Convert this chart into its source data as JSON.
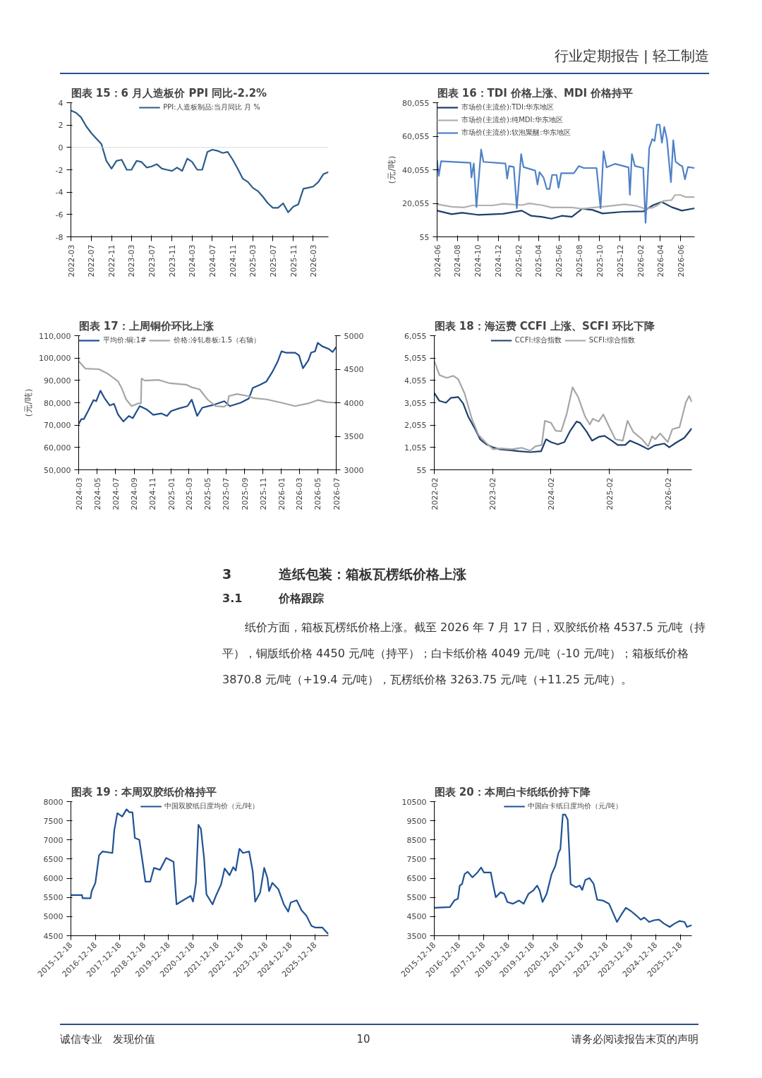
{
  "chart_data": [
    {
      "type": "other",
      "annotations": [
        "行业定期报告 | 轻工制造"
      ]
    },
    {
      "type": "line",
      "title": "图表 15：6 月人造板价 PPI 同比-2.2%",
      "legend": "top",
      "x": [
        "2022-03",
        "2022-04",
        "2022-05",
        "2022-06",
        "2022-07",
        "2022-08",
        "2022-09",
        "2022-10",
        "2022-11",
        "2022-12",
        "2023-01",
        "2023-02",
        "2023-03",
        "2023-04",
        "2023-05",
        "2023-06",
        "2023-07",
        "2023-08",
        "2023-09",
        "2023-10",
        "2023-11",
        "2023-12",
        "2024-01",
        "2024-02",
        "2024-03",
        "2024-04",
        "2024-05",
        "2024-06",
        "2024-07",
        "2024-08",
        "2024-09",
        "2024-10",
        "2024-11",
        "2024-12",
        "2025-01",
        "2025-02",
        "2025-03",
        "2025-04",
        "2025-05",
        "2025-06",
        "2025-07",
        "2025-08",
        "2025-09",
        "2025-10",
        "2025-11",
        "2025-12",
        "2026-01",
        "2026-02",
        "2026-03",
        "2026-04",
        "2026-05",
        "2026-06"
      ],
      "series": [
        {
          "name": "PPI:人造板制品:当月同比 月 %",
          "color": "#2b5c8a",
          "values": [
            3.3,
            3.1,
            2.7,
            1.9,
            1.3,
            0.8,
            0.3,
            -1.2,
            -1.9,
            -1.2,
            -1.1,
            -2.0,
            -2.0,
            -1.2,
            -1.3,
            -1.8,
            -1.7,
            -1.5,
            -1.9,
            -2.0,
            -2.1,
            -1.8,
            -2.1,
            -1.0,
            -1.3,
            -2.0,
            -2.0,
            -0.4,
            -0.2,
            -0.3,
            -0.5,
            -0.4,
            -1.1,
            -1.9,
            -2.8,
            -3.1,
            -3.6,
            -3.9,
            -4.4,
            -5.0,
            -5.4,
            -5.4,
            -5.0,
            -5.8,
            -5.3,
            -5.1,
            -3.7,
            -3.6,
            -3.5,
            -3.1,
            -2.4,
            -2.2
          ]
        }
      ],
      "xlim": [
        "2022-03",
        "2026-06"
      ],
      "xticks": [
        "2022-03",
        "2022-07",
        "2022-11",
        "2023-03",
        "2023-07",
        "2023-11",
        "2024-03",
        "2024-07",
        "2024-11",
        "2025-03",
        "2025-07",
        "2025-11",
        "2026-03"
      ],
      "ylim": [
        -8,
        4
      ],
      "yticks": [
        -8,
        -6,
        -4,
        -2,
        0,
        2,
        4
      ],
      "ref_lines": [
        {
          "axis": "y",
          "value": 0,
          "color": "#d9d9d9"
        }
      ]
    },
    {
      "type": "line",
      "title": "图表 16：TDI 价格上涨、MDI 价格持平",
      "ylabel": "（元/吨）",
      "legend": "top left",
      "series": [
        {
          "name": "市场价(主流价):TDI:华东地区",
          "color": "#1f3f6e",
          "x": [
            "2024-06-01",
            "2024-07-15",
            "2024-08-15",
            "2024-10-01",
            "2024-12-15",
            "2025-02-10",
            "2025-03-10",
            "2025-04-10",
            "2025-05-10",
            "2025-06-10",
            "2025-07-10",
            "2025-08-10",
            "2025-09-10",
            "2025-10-10",
            "2025-12-10",
            "2026-02-10",
            "2026-03-10",
            "2026-04-05",
            "2026-05-05",
            "2026-06-05",
            "2026-07-13"
          ],
          "values": [
            15700,
            13600,
            14400,
            13200,
            13800,
            15700,
            12600,
            12000,
            10900,
            12600,
            12000,
            16800,
            16100,
            14000,
            15000,
            15300,
            18900,
            20900,
            17800,
            15700,
            17100
          ]
        },
        {
          "name": "市场价(主流价):纯MDI:华东地区",
          "color": "#b0b0b0",
          "x": [
            "2024-06-01",
            "2024-07-15",
            "2024-08-20",
            "2024-09-15",
            "2024-11-15",
            "2024-12-15",
            "2025-02-10",
            "2025-03-05",
            "2025-04-10",
            "2025-05-10",
            "2025-07-10",
            "2025-08-10",
            "2025-09-15",
            "2025-10-20",
            "2025-12-15",
            "2026-01-20",
            "2026-02-15",
            "2026-03-10",
            "2026-03-25",
            "2026-04-10",
            "2026-05-05",
            "2026-05-15",
            "2026-06-01",
            "2026-06-15",
            "2026-07-13"
          ],
          "values": [
            19500,
            18000,
            17600,
            18800,
            18800,
            19800,
            19000,
            20000,
            19000,
            17600,
            17600,
            16800,
            17600,
            18200,
            19500,
            18500,
            16800,
            17500,
            19000,
            21500,
            22000,
            25000,
            25000,
            23800,
            23800
          ]
        },
        {
          "name": "市场价(主流价):软泡聚醚:华东地区",
          "color": "#4f81c7",
          "x": [
            "2024-06-01",
            "2024-06-06",
            "2024-06-13",
            "2024-09-09",
            "2024-09-12",
            "2024-09-19",
            "2024-09-27",
            "2024-10-11",
            "2024-10-18",
            "2024-12-23",
            "2024-12-28",
            "2025-01-03",
            "2025-01-17",
            "2025-01-26",
            "2025-02-08",
            "2025-02-15",
            "2025-03-22",
            "2025-03-29",
            "2025-04-04",
            "2025-04-16",
            "2025-04-26",
            "2025-05-04",
            "2025-05-12",
            "2025-05-25",
            "2025-05-31",
            "2025-06-08",
            "2025-07-16",
            "2025-07-31",
            "2025-08-15",
            "2025-09-22",
            "2025-10-04",
            "2025-10-13",
            "2025-10-22",
            "2025-11-17",
            "2025-12-27",
            "2025-12-31",
            "2026-01-06",
            "2026-01-15",
            "2026-02-09",
            "2026-02-16",
            "2026-02-27",
            "2026-03-08",
            "2026-03-15",
            "2026-03-22",
            "2026-03-30",
            "2026-04-06",
            "2026-04-13",
            "2026-04-21",
            "2026-05-03",
            "2026-05-10",
            "2026-05-17",
            "2026-05-31",
            "2026-06-06",
            "2026-06-14",
            "2026-06-23",
            "2026-07-13"
          ],
          "values": [
            45900,
            36400,
            45200,
            44200,
            35500,
            43800,
            17800,
            52100,
            44800,
            43800,
            34800,
            42300,
            41700,
            17100,
            49400,
            41700,
            39600,
            31300,
            38600,
            35500,
            28600,
            28600,
            37000,
            37000,
            29300,
            38000,
            38000,
            42300,
            41100,
            41100,
            17100,
            51100,
            41500,
            43600,
            41500,
            25100,
            49400,
            42300,
            41100,
            8400,
            53100,
            58300,
            57300,
            67000,
            67000,
            56200,
            65600,
            58300,
            32700,
            57700,
            44800,
            42700,
            42300,
            34400,
            41700,
            41100
          ]
        }
      ],
      "xlim": [
        "2024-06-01",
        "2026-07-13"
      ],
      "xticks": [
        "2024-06",
        "2024-08",
        "2024-10",
        "2024-12",
        "2025-02",
        "2025-04",
        "2025-06",
        "2025-08",
        "2025-10",
        "2025-12",
        "2026-02",
        "2026-04",
        "2026-06"
      ],
      "ylim": [
        55,
        80055
      ],
      "yticks": [
        55,
        {
          "value": 20055,
          "label": "20,055"
        },
        {
          "value": 40055,
          "label": "40,055"
        },
        {
          "value": 60055,
          "label": "60,055"
        },
        {
          "value": 80055,
          "label": "80,055"
        }
      ]
    },
    {
      "type": "line",
      "title": "图表 17：上周铜价环比上涨",
      "ylabel": "（元/吨）",
      "legend": "top left",
      "series": [
        {
          "name": "平均价:铜:1#",
          "color": "#1f4e8c",
          "x": [
            "2024-03-01",
            "2024-03-10",
            "2024-03-18",
            "2024-04-01",
            "2024-04-19",
            "2024-04-28",
            "2024-05-12",
            "2024-05-25",
            "2024-06-12",
            "2024-06-26",
            "2024-07-09",
            "2024-07-27",
            "2024-08-14",
            "2024-08-27",
            "2024-09-19",
            "2024-10-11",
            "2024-11-03",
            "2024-11-30",
            "2024-12-18",
            "2025-01-01",
            "2025-01-28",
            "2025-02-24",
            "2025-03-10",
            "2025-03-28",
            "2025-04-14",
            "2025-05-20",
            "2025-06-26",
            "2025-07-14",
            "2025-08-19",
            "2025-09-15",
            "2025-09-28",
            "2025-10-21",
            "2025-11-12",
            "2025-12-01",
            "2025-12-19",
            "2026-01-01",
            "2026-01-15",
            "2026-02-15",
            "2026-02-28",
            "2026-03-13",
            "2026-03-31",
            "2026-04-09",
            "2026-04-22",
            "2026-05-01",
            "2026-05-15",
            "2026-06-06",
            "2026-06-19",
            "2026-07-01"
          ],
          "values": [
            70500,
            72700,
            72700,
            76300,
            81200,
            80700,
            85400,
            82200,
            78800,
            79500,
            74800,
            71600,
            74100,
            73100,
            78500,
            77100,
            74600,
            75200,
            74100,
            76300,
            77500,
            78500,
            81400,
            74100,
            77800,
            79000,
            80700,
            78500,
            80000,
            81900,
            86600,
            88000,
            89500,
            93600,
            98300,
            103000,
            102400,
            102400,
            101200,
            95400,
            99000,
            102400,
            103000,
            106800,
            105300,
            104100,
            102700,
            104900
          ]
        },
        {
          "name": "价格:冷轧卷板:1.5（右轴）",
          "color": "#a6a6a6",
          "axis": "y2",
          "x": [
            "2024-03-01",
            "2024-03-23",
            "2024-05-07",
            "2024-06-03",
            "2024-07-09",
            "2024-07-22",
            "2024-08-05",
            "2024-08-23",
            "2024-09-14",
            "2024-09-23",
            "2024-09-25",
            "2024-10-06",
            "2024-11-21",
            "2024-12-28",
            "2025-02-20",
            "2025-03-10",
            "2025-04-05",
            "2025-05-01",
            "2025-05-28",
            "2025-06-24",
            "2025-07-06",
            "2025-07-11",
            "2025-08-07",
            "2025-09-12",
            "2025-09-30",
            "2025-11-13",
            "2026-01-01",
            "2026-02-15",
            "2026-03-31",
            "2026-05-01",
            "2026-06-01",
            "2026-07-01"
          ],
          "values": [
            4620,
            4510,
            4500,
            4440,
            4320,
            4210,
            4050,
            3950,
            3990,
            3990,
            4360,
            4330,
            4340,
            4290,
            4270,
            4230,
            4200,
            4050,
            3950,
            3940,
            3970,
            4100,
            4130,
            4100,
            4070,
            4050,
            4000,
            3950,
            3990,
            4040,
            4010,
            4000
          ]
        }
      ],
      "xlim": [
        "2024-03-01",
        "2026-07-01"
      ],
      "xticks": [
        "2024-03",
        "2024-05",
        "2024-07",
        "2024-09",
        "2024-11",
        "2025-01",
        "2025-03",
        "2025-05",
        "2025-07",
        "2025-09",
        "2025-11",
        "2026-01",
        "2026-03",
        "2026-05",
        "2026-07"
      ],
      "ylim": [
        50000,
        110000
      ],
      "yticks": [
        {
          "value": 50000,
          "label": "50,000"
        },
        {
          "value": 60000,
          "label": "60,000"
        },
        {
          "value": 70000,
          "label": "70,000"
        },
        {
          "value": 80000,
          "label": "80,000"
        },
        {
          "value": 90000,
          "label": "90,000"
        },
        {
          "value": 100000,
          "label": "100,000"
        },
        {
          "value": 110000,
          "label": "110,000"
        }
      ],
      "y2lim": [
        3000,
        5000
      ],
      "y2ticks": [
        3000,
        3500,
        4000,
        4500,
        5000
      ]
    },
    {
      "type": "line",
      "title": "图表 18：海运费 CCFI 上涨、SCFI 环比下降",
      "legend": "top",
      "series": [
        {
          "name": "CCFI:综合指数",
          "color": "#1f3f6e",
          "x": [
            "2022-02-01",
            "2022-03-05",
            "2022-04-15",
            "2022-05-15",
            "2022-07-01",
            "2022-08-01",
            "2022-09-01",
            "2022-10-15",
            "2022-11-15",
            "2022-12-25",
            "2023-02-05",
            "2023-03-15",
            "2023-05-15",
            "2023-07-15",
            "2023-09-25",
            "2023-12-01",
            "2024-01-01",
            "2024-02-01",
            "2024-03-15",
            "2024-04-25",
            "2024-06-01",
            "2024-07-10",
            "2024-08-01",
            "2024-09-10",
            "2024-10-15",
            "2024-11-25",
            "2025-01-01",
            "2025-02-15",
            "2025-03-25",
            "2025-05-10",
            "2025-06-10",
            "2025-08-10",
            "2025-10-01",
            "2025-11-10",
            "2026-01-10",
            "2026-02-10",
            "2026-03-25",
            "2026-05-15",
            "2026-07-01"
          ],
          "values": [
            3490,
            3140,
            3055,
            3270,
            3310,
            3020,
            2440,
            1870,
            1420,
            1190,
            1060,
            975,
            935,
            885,
            845,
            885,
            1420,
            1295,
            1190,
            1295,
            1805,
            2215,
            2160,
            1770,
            1360,
            1525,
            1575,
            1360,
            1165,
            1165,
            1360,
            1165,
            975,
            1140,
            1230,
            1060,
            1270,
            1485,
            1910
          ]
        },
        {
          "name": "SCFI:综合指数",
          "color": "#a6a6a6",
          "x": [
            "2022-02-01",
            "2022-03-05",
            "2022-04-20",
            "2022-06-01",
            "2022-07-01",
            "2022-08-10",
            "2022-09-25",
            "2022-11-05",
            "2022-12-20",
            "2023-02-05",
            "2023-03-25",
            "2023-06-01",
            "2023-08-01",
            "2023-09-25",
            "2023-10-25",
            "2023-12-05",
            "2023-12-25",
            "2024-02-01",
            "2024-03-01",
            "2024-04-05",
            "2024-05-10",
            "2024-06-15",
            "2024-07-20",
            "2024-09-01",
            "2024-10-01",
            "2024-10-20",
            "2024-11-25",
            "2024-12-25",
            "2025-01-25",
            "2025-03-10",
            "2025-04-25",
            "2025-05-25",
            "2025-07-01",
            "2025-08-20",
            "2025-10-01",
            "2025-10-25",
            "2025-11-15",
            "2025-12-15",
            "2026-02-01",
            "2026-03-01",
            "2026-04-15",
            "2026-05-25",
            "2026-06-15",
            "2026-07-01"
          ],
          "values": [
            4930,
            4295,
            4170,
            4260,
            4105,
            3465,
            2315,
            1615,
            1270,
            975,
            1015,
            975,
            1040,
            910,
            1100,
            1165,
            2250,
            2160,
            1805,
            1780,
            2570,
            3745,
            3310,
            2440,
            2085,
            2340,
            2215,
            2530,
            2060,
            1420,
            1360,
            2250,
            1740,
            1450,
            1100,
            1550,
            1420,
            1680,
            1295,
            1870,
            1960,
            3080,
            3360,
            3080
          ]
        }
      ],
      "xlim": [
        "2022-02-01",
        "2026-07-01"
      ],
      "xticks": [
        "2022-02",
        "2023-02",
        "2024-02",
        "2025-02",
        "2026-02"
      ],
      "ylim": [
        55,
        6055
      ],
      "yticks": [
        55,
        {
          "value": 1055,
          "label": "1,055"
        },
        {
          "value": 2055,
          "label": "2,055"
        },
        {
          "value": 3055,
          "label": "3,055"
        },
        {
          "value": 4055,
          "label": "4,055"
        },
        {
          "value": 5055,
          "label": "5,055"
        },
        {
          "value": 6055,
          "label": "6,055"
        }
      ]
    },
    {
      "type": "other",
      "annotations": [
        "3",
        "造纸包装：箱板瓦楞纸价格上涨",
        "3.1",
        "价格跟踪",
        "纸价方面，箱板瓦楞纸价格上涨。截至 2026 年 7 月 17 日，双胶纸价格 4537.5 元/吨（持平），铜版纸价格 4450 元/吨（持平）；白卡纸价格 4049 元/吨（-10 元/吨）；箱板纸价格 3870.8 元/吨（+19.4 元/吨），瓦楞纸价格 3263.75 元/吨（+11.25 元/吨）。"
      ]
    },
    {
      "type": "line",
      "title": "图表 19：本周双胶纸价格持平",
      "legend": "top",
      "series": [
        {
          "name": "中国双胶纸日度均价（元/吨）",
          "color": "#1f5295",
          "x": [
            "2015-12-18",
            "2016-06-01",
            "2016-06-10",
            "2016-10-06",
            "2016-10-24",
            "2016-12-18",
            "2017-02-11",
            "2017-04-05",
            "2017-08-30",
            "2017-09-28",
            "2017-11-12",
            "2018-01-24",
            "2018-03-29",
            "2018-05-13",
            "2018-06-26",
            "2018-08-01",
            "2018-10-06",
            "2018-11-30",
            "2019-01-05",
            "2019-03-19",
            "2019-05-13",
            "2019-08-12",
            "2019-11-12",
            "2020-03-02",
            "2020-04-15",
            "2020-06-18",
            "2020-11-12",
            "2020-12-18",
            "2021-01-31",
            "2021-03-09",
            "2021-04-15",
            "2021-06-01",
            "2021-07-07",
            "2021-10-06",
            "2021-11-30",
            "2022-02-11",
            "2022-04-05",
            "2022-06-18",
            "2022-08-12",
            "2022-09-18",
            "2022-11-12",
            "2023-01-05",
            "2023-04-06",
            "2023-05-30",
            "2023-07-06",
            "2023-09-18",
            "2023-11-18",
            "2024-01-05",
            "2024-01-30",
            "2024-03-18",
            "2024-06-18",
            "2024-09-06",
            "2024-11-12",
            "2024-12-18",
            "2025-03-18",
            "2025-05-30",
            "2025-08-12",
            "2025-10-24",
            "2025-12-18",
            "2026-04-05",
            "2026-05-30",
            "2026-07-06"
          ],
          "values": [
            5560,
            5560,
            5480,
            5480,
            5665,
            5880,
            6600,
            6700,
            6660,
            7265,
            7700,
            7610,
            7800,
            7720,
            7720,
            7050,
            7005,
            6360,
            5910,
            5910,
            6270,
            6220,
            6530,
            6430,
            5320,
            5390,
            5540,
            5390,
            5880,
            7395,
            7290,
            6530,
            5580,
            5320,
            5560,
            5840,
            6255,
            6080,
            6290,
            6200,
            6770,
            6660,
            6700,
            6185,
            5390,
            5625,
            6270,
            6010,
            5665,
            5880,
            5710,
            5320,
            5130,
            5365,
            5425,
            5165,
            5020,
            4760,
            4715,
            4715,
            4610,
            4540
          ]
        }
      ],
      "xlim": [
        "2015-12-18",
        "2026-07-06"
      ],
      "xticks": [
        "2015-12-18",
        "2016-12-18",
        "2017-12-18",
        "2018-12-18",
        "2019-12-18",
        "2020-12-18",
        "2021-12-18",
        "2022-12-18",
        "2023-12-18",
        "2024-12-18",
        "2025-12-18"
      ],
      "ylim": [
        4500,
        8000
      ],
      "yticks": [
        4500,
        5000,
        5500,
        6000,
        6500,
        7000,
        7500,
        8000
      ]
    },
    {
      "type": "line",
      "title": "图表 20：本周白卡纸纸价持下降",
      "legend": "top",
      "series": [
        {
          "name": "中国白卡纸日度均价（元/吨）",
          "color": "#1f5295",
          "x": [
            "2015-12-18",
            "2016-08-06",
            "2016-10-10",
            "2016-12-03",
            "2016-12-30",
            "2017-02-03",
            "2017-03-12",
            "2017-04-28",
            "2017-07-06",
            "2017-09-18",
            "2017-11-12",
            "2017-12-25",
            "2018-04-05",
            "2018-05-12",
            "2018-06-18",
            "2018-08-26",
            "2018-10-20",
            "2018-12-07",
            "2019-02-25",
            "2019-05-28",
            "2019-08-05",
            "2019-10-17",
            "2019-12-25",
            "2020-02-22",
            "2020-03-30",
            "2020-05-12",
            "2020-07-13",
            "2020-09-24",
            "2020-11-18",
            "2021-01-05",
            "2021-01-31",
            "2021-03-09",
            "2021-04-14",
            "2021-05-20",
            "2021-06-14",
            "2021-07-02",
            "2021-09-20",
            "2021-11-15",
            "2021-12-22",
            "2022-02-06",
            "2022-04-10",
            "2022-06-10",
            "2022-08-01",
            "2022-10-24",
            "2023-01-23",
            "2023-03-18",
            "2023-05-22",
            "2023-07-20",
            "2023-09-30",
            "2023-12-15",
            "2024-03-15",
            "2024-05-08",
            "2024-06-30",
            "2024-09-10",
            "2024-11-22",
            "2025-02-03",
            "2025-04-16",
            "2025-07-12",
            "2025-09-25",
            "2025-12-07",
            "2026-02-18",
            "2026-03-25",
            "2026-06-05"
          ],
          "values": [
            4960,
            5000,
            5340,
            5430,
            6120,
            6200,
            6720,
            6840,
            6550,
            6800,
            7060,
            6800,
            6800,
            6120,
            5510,
            5770,
            5690,
            5260,
            5170,
            5340,
            5170,
            5690,
            5860,
            6120,
            5860,
            5260,
            5690,
            6720,
            7150,
            7840,
            8010,
            9820,
            9820,
            9560,
            7750,
            6200,
            6030,
            6120,
            5890,
            6410,
            6510,
            6200,
            5380,
            5340,
            5170,
            4740,
            4220,
            4570,
            4960,
            4790,
            4520,
            4340,
            4450,
            4220,
            4310,
            4340,
            4140,
            3960,
            4140,
            4270,
            4220,
            3960,
            4050
          ]
        }
      ],
      "xlim": [
        "2015-12-18",
        "2026-06-05"
      ],
      "xticks": [
        "2015-12-18",
        "2016-12-18",
        "2017-12-18",
        "2018-12-18",
        "2019-12-18",
        "2020-12-18",
        "2021-12-18",
        "2022-12-18",
        "2023-12-18",
        "2024-12-18",
        "2025-12-18"
      ],
      "ylim": [
        3500,
        10500
      ],
      "yticks": [
        3500,
        4500,
        5500,
        6500,
        7500,
        8500,
        9500,
        10500
      ]
    },
    {
      "type": "other",
      "annotations": [
        "诚信专业　发现价值",
        "10",
        "请务必阅读报告末页的声明"
      ]
    }
  ]
}
